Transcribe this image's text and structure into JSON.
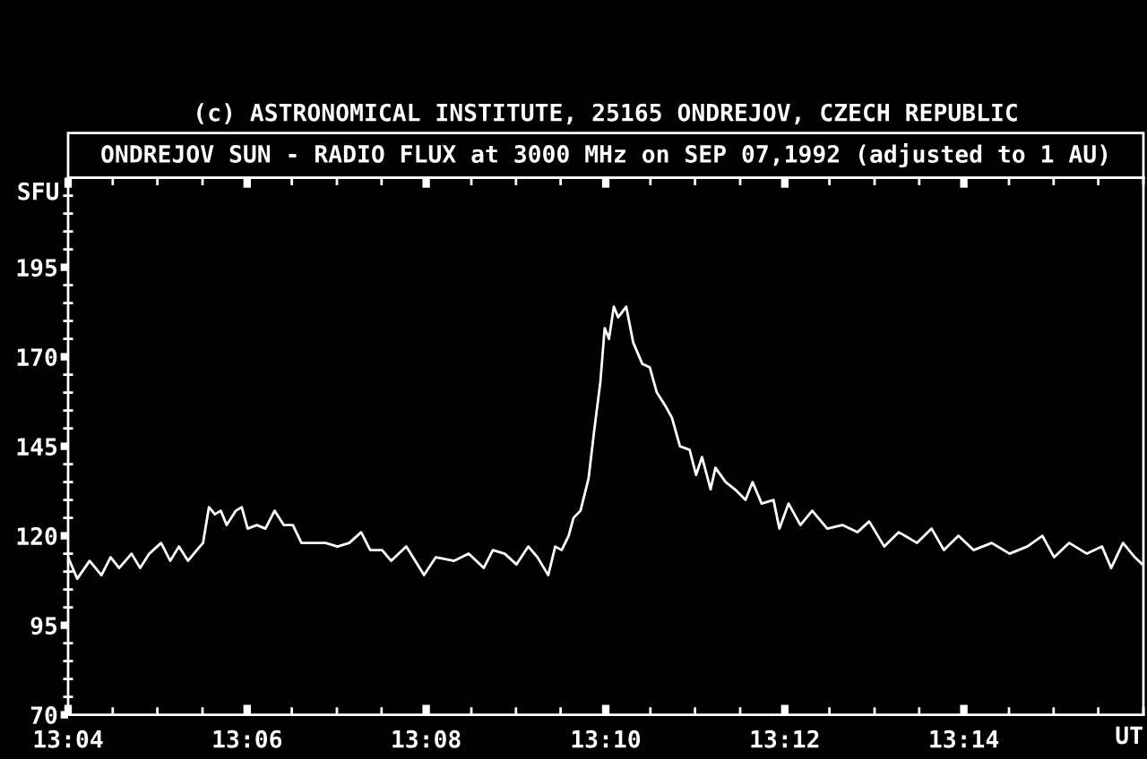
{
  "chart_data": {
    "type": "line",
    "title": "ONDREJOV SUN - RADIO FLUX at 3000 MHz on SEP 07,1992 (adjusted to 1 AU)",
    "annotations": [
      "(c) ASTRONOMICAL INSTITUTE, 25165 ONDREJOV, CZECH REPUBLIC"
    ],
    "ylabel": "SFU",
    "xlabel": "UT",
    "x": [
      13.0667,
      13.0684,
      13.0707,
      13.0729,
      13.0746,
      13.0762,
      13.0785,
      13.0801,
      13.0818,
      13.084,
      13.0857,
      13.0873,
      13.089,
      13.0912,
      13.0918,
      13.0929,
      13.094,
      13.0951,
      13.0962,
      13.0979,
      13.099,
      13.1001,
      13.1018,
      13.1034,
      13.1051,
      13.1068,
      13.1085,
      13.1101,
      13.1123,
      13.1146,
      13.1168,
      13.119,
      13.1212,
      13.1229,
      13.1251,
      13.1268,
      13.1296,
      13.1329,
      13.1351,
      13.1385,
      13.1412,
      13.144,
      13.1457,
      13.1479,
      13.1501,
      13.1523,
      13.154,
      13.156,
      13.1573,
      13.1585,
      13.1598,
      13.1607,
      13.162,
      13.1635,
      13.1646,
      13.1657,
      13.1665,
      13.1673,
      13.1682,
      13.169,
      13.1705,
      13.1718,
      13.1735,
      13.1749,
      13.1762,
      13.1779,
      13.179,
      13.1805,
      13.1823,
      13.1835,
      13.1846,
      13.1862,
      13.1871,
      13.189,
      13.1907,
      13.1927,
      13.194,
      13.1957,
      13.1979,
      13.199,
      13.2007,
      13.2029,
      13.2051,
      13.2079,
      13.2107,
      13.2135,
      13.2157,
      13.2185,
      13.2212,
      13.2246,
      13.2273,
      13.2296,
      13.2323,
      13.2351,
      13.2385,
      13.2418,
      13.2451,
      13.2479,
      13.2501,
      13.2529,
      13.2562,
      13.259,
      13.2607,
      13.2629,
      13.2651,
      13.2665
    ],
    "series": [
      {
        "color": "#ffffff",
        "values": [
          114,
          108,
          113,
          109,
          114,
          111,
          115,
          111,
          115,
          118,
          113,
          117,
          113,
          117,
          118,
          128,
          126,
          127,
          123,
          127,
          128,
          122,
          123,
          122,
          127,
          123,
          123,
          118,
          118,
          118,
          117,
          118,
          121,
          116,
          116,
          113,
          117,
          109,
          114,
          113,
          115,
          111,
          116,
          115,
          112,
          117,
          114,
          109,
          117,
          116,
          120,
          125,
          127,
          136,
          150,
          163,
          178,
          175,
          184,
          181,
          184,
          174,
          168,
          167,
          160,
          156,
          153,
          145,
          144,
          137,
          142,
          133,
          139,
          135,
          133,
          130,
          135,
          129,
          130,
          122,
          129,
          123,
          127,
          122,
          123,
          121,
          124,
          117,
          121,
          118,
          122,
          116,
          120,
          116,
          118,
          115,
          117,
          120,
          114,
          118,
          115,
          117,
          111,
          118,
          114,
          112
        ]
      }
    ],
    "xlim": [
      13.0667,
      13.2667
    ],
    "xticks": [
      {
        "value": 13.0667,
        "label": "13:04"
      },
      {
        "value": 13.075,
        "label": null
      },
      {
        "value": 13.0833,
        "label": null
      },
      {
        "value": 13.0917,
        "label": null
      },
      {
        "value": 13.1,
        "label": "13:06"
      },
      {
        "value": 13.1083,
        "label": null
      },
      {
        "value": 13.1167,
        "label": null
      },
      {
        "value": 13.125,
        "label": null
      },
      {
        "value": 13.1333,
        "label": "13:08"
      },
      {
        "value": 13.1417,
        "label": null
      },
      {
        "value": 13.15,
        "label": null
      },
      {
        "value": 13.1583,
        "label": null
      },
      {
        "value": 13.1667,
        "label": "13:10"
      },
      {
        "value": 13.175,
        "label": null
      },
      {
        "value": 13.1833,
        "label": null
      },
      {
        "value": 13.1917,
        "label": null
      },
      {
        "value": 13.2,
        "label": "13:12"
      },
      {
        "value": 13.2083,
        "label": null
      },
      {
        "value": 13.2167,
        "label": null
      },
      {
        "value": 13.225,
        "label": null
      },
      {
        "value": 13.2333,
        "label": "13:14"
      },
      {
        "value": 13.2417,
        "label": null
      },
      {
        "value": 13.25,
        "label": null
      },
      {
        "value": 13.2583,
        "label": null
      },
      {
        "value": 13.2667,
        "label": null
      }
    ],
    "ylim": [
      70,
      220
    ],
    "yticks": [
      70,
      {
        "value": 75,
        "label": null
      },
      {
        "value": 80,
        "label": null
      },
      {
        "value": 85,
        "label": null
      },
      {
        "value": 90,
        "label": null
      },
      95,
      {
        "value": 100,
        "label": null
      },
      {
        "value": 105,
        "label": null
      },
      {
        "value": 110,
        "label": null
      },
      {
        "value": 115,
        "label": null
      },
      120,
      {
        "value": 125,
        "label": null
      },
      {
        "value": 130,
        "label": null
      },
      {
        "value": 135,
        "label": null
      },
      {
        "value": 140,
        "label": null
      },
      145,
      {
        "value": 150,
        "label": null
      },
      {
        "value": 155,
        "label": null
      },
      {
        "value": 160,
        "label": null
      },
      {
        "value": 165,
        "label": null
      },
      170,
      {
        "value": 175,
        "label": null
      },
      {
        "value": 180,
        "label": null
      },
      {
        "value": 185,
        "label": null
      },
      {
        "value": 190,
        "label": null
      },
      195,
      {
        "value": 200,
        "label": null
      },
      {
        "value": 205,
        "label": null
      },
      {
        "value": 210,
        "label": null
      },
      {
        "value": 215,
        "label": null
      }
    ]
  }
}
